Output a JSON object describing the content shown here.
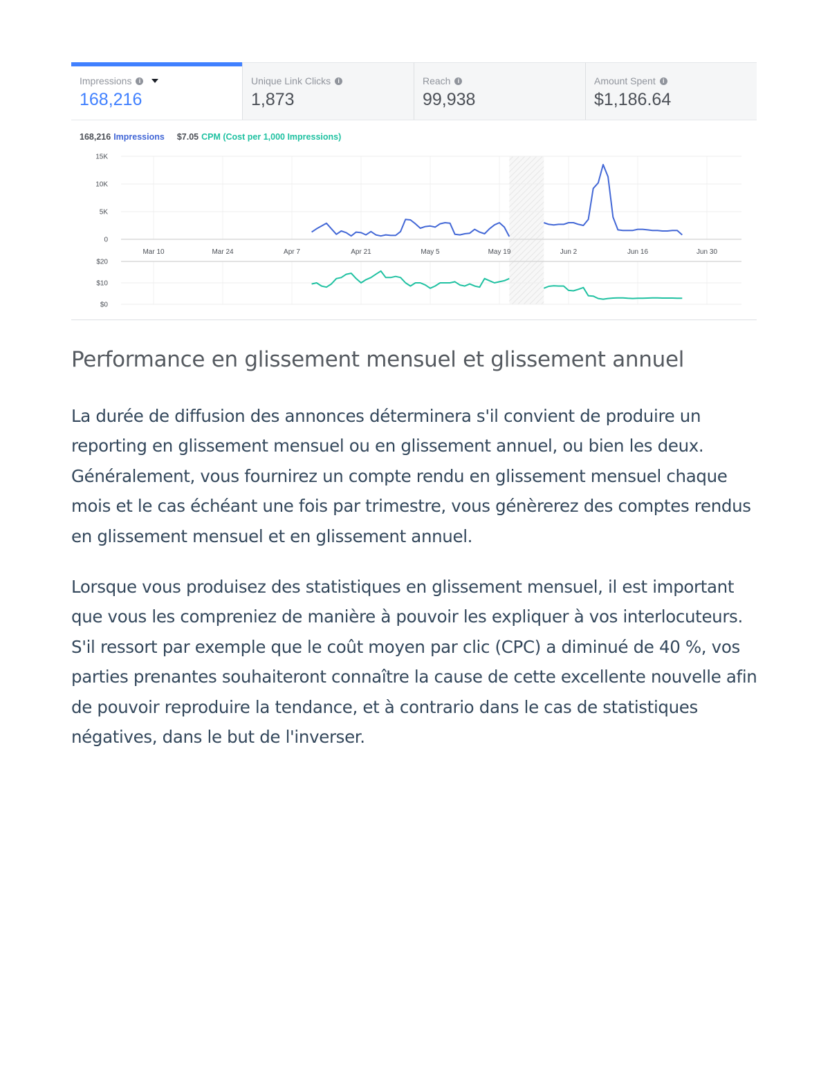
{
  "tabs": [
    {
      "label": "Impressions",
      "value": "168,216",
      "active": true,
      "info_icon": "info-icon",
      "dropdown_icon": "caret-down-icon"
    },
    {
      "label": "Unique Link Clicks",
      "value": "1,873",
      "active": false,
      "info_icon": "info-icon"
    },
    {
      "label": "Reach",
      "value": "99,938",
      "active": false,
      "info_icon": "info-icon"
    },
    {
      "label": "Amount Spent",
      "value": "$1,186.64",
      "active": false,
      "info_icon": "info-icon"
    }
  ],
  "summary": {
    "impressions_value": "168,216",
    "impressions_label": "Impressions",
    "cpm_value": "$7.05",
    "cpm_label": "CPM (Cost per 1,000 Impressions)"
  },
  "colors": {
    "accent": "#4080ff",
    "impressions": "#4267d6",
    "cpm": "#1fc1a1"
  },
  "chart_data": [
    {
      "type": "line",
      "series": [
        {
          "name": "Impressions",
          "color": "#4267d6"
        }
      ],
      "x_tick_labels": [
        "Mar 10",
        "Mar 24",
        "Apr 7",
        "Apr 21",
        "May 5",
        "May 19",
        "Jun 2",
        "Jun 16",
        "Jun 30"
      ],
      "y_tick_labels": [
        "15K",
        "10K",
        "5K",
        "0"
      ],
      "ylim": [
        0,
        15000
      ],
      "grid": true,
      "segments": [
        {
          "start": "Apr 11",
          "end": "May 21",
          "values": [
            1300,
            1900,
            2400,
            2900,
            1900,
            900,
            1500,
            1200,
            600,
            1300,
            1200,
            800,
            1400,
            800,
            600,
            800,
            700,
            700,
            1400,
            3600,
            3500,
            2800,
            2000,
            2300,
            2400,
            2200,
            2800,
            3000,
            2900,
            900,
            800,
            1000,
            1100,
            1800,
            1300,
            1000,
            1900,
            2600,
            3000,
            2200,
            500
          ]
        },
        {
          "start": "May 28",
          "end": "Jun 25",
          "values": [
            3000,
            2700,
            2600,
            2700,
            2700,
            3000,
            3000,
            2700,
            2500,
            3600,
            9200,
            10200,
            13500,
            11300,
            4000,
            1700,
            1600,
            1600,
            1600,
            1800,
            1800,
            1700,
            1600,
            1600,
            1500,
            1500,
            1600,
            1600,
            800
          ]
        }
      ],
      "no_data_range": [
        "May 21",
        "May 28"
      ]
    },
    {
      "type": "line",
      "series": [
        {
          "name": "CPM",
          "color": "#1fc1a1"
        }
      ],
      "y_tick_labels": [
        "$20",
        "$10",
        "$0"
      ],
      "ylim": [
        0,
        20
      ],
      "grid": true,
      "segments": [
        {
          "start": "Apr 11",
          "end": "May 21",
          "values": [
            9.5,
            10,
            8.5,
            8,
            9.5,
            12,
            12.5,
            14,
            14.5,
            12,
            10,
            11.5,
            12.5,
            14,
            15.5,
            12.5,
            12.5,
            13,
            12.5,
            10,
            8.5,
            10,
            10,
            9,
            7.5,
            8.5,
            10,
            10,
            10,
            10.5,
            9,
            8.5,
            9.5,
            8.5,
            8,
            12,
            11,
            10,
            10.5,
            11,
            12
          ]
        },
        {
          "start": "May 28",
          "end": "Jun 25",
          "values": [
            7.5,
            8.4,
            8.6,
            8.5,
            8.5,
            6.5,
            6.3,
            7,
            7.8,
            4,
            3.8,
            2.7,
            2.4,
            2.7,
            2.9,
            3,
            3,
            2.8,
            2.7,
            2.8,
            2.8,
            2.9,
            3,
            3,
            2.9,
            2.9,
            2.9,
            2.8,
            2.8
          ]
        }
      ],
      "no_data_range": [
        "May 21",
        "May 28"
      ]
    }
  ],
  "article": {
    "heading": "Performance en glissement mensuel et glissement annuel",
    "paragraphs": [
      "La durée de diffusion des annonces déterminera s'il convient de produire un reporting en glissement mensuel ou en glissement annuel, ou bien les deux. Généralement, vous fournirez un compte rendu en glissement mensuel chaque mois et le cas échéant une fois par trimestre, vous génèrerez des comptes rendus en glissement mensuel et en glissement annuel.",
      "Lorsque vous produisez des statistiques en glissement mensuel, il est important que vous les compreniez de manière à pouvoir les expliquer à vos interlocuteurs. S'il ressort par exemple que le coût moyen par clic (CPC) a diminué de 40 %, vos parties prenantes souhaiteront connaître la cause de cette excellente nouvelle afin de pouvoir reproduire la tendance, et à contrario dans le cas de statistiques négatives, dans le but de l'inverser."
    ]
  }
}
